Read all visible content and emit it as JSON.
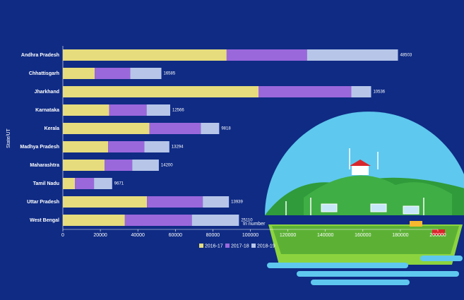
{
  "chart_data": {
    "type": "stacked-barh",
    "ylabel": "State/UT",
    "xlabel": "In number",
    "categories": [
      "Andhra Pradesh",
      "Chhattisgarh",
      "Jharkhand",
      "Karnataka",
      "Kerala",
      "Madhya Pradesh",
      "Maharashtra",
      "Tamil Nadu",
      "Uttar Pradesh",
      "West Bengal"
    ],
    "series": [
      {
        "name": "2016-17",
        "color": "#e6dc7d",
        "values": [
          87343,
          17013,
          104334,
          24661,
          46132,
          24175,
          22303,
          6420,
          44850,
          33077
        ]
      },
      {
        "name": "2017-18",
        "color": "#9b68dc",
        "values": [
          42866,
          18949,
          49523,
          20020,
          27424,
          19328,
          14688,
          10199,
          29778,
          35724
        ]
      },
      {
        "name": "2018-19",
        "color": "#b7c6e8",
        "values": [
          48503,
          16585,
          10536,
          12566,
          9818,
          13294,
          14200,
          9671,
          13939,
          25110
        ]
      }
    ],
    "xlim": [
      0,
      200000
    ],
    "xticks": [
      0,
      20000,
      40000,
      60000,
      80000,
      100000,
      120000,
      140000,
      160000,
      180000,
      200000
    ]
  }
}
